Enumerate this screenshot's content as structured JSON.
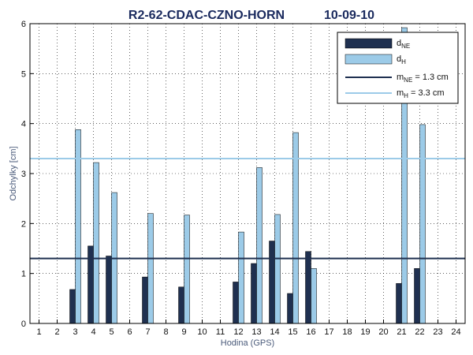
{
  "chart_data": {
    "type": "bar",
    "title": "R2-62-CDAC-CZNO-HORN",
    "date": "10-09-10",
    "x_label": "Hodina (GPS)",
    "y_label": "Odchylky [cm]",
    "x": [
      1,
      2,
      3,
      4,
      5,
      6,
      7,
      8,
      9,
      10,
      11,
      12,
      13,
      14,
      15,
      16,
      17,
      18,
      19,
      20,
      21,
      22,
      23,
      24
    ],
    "xlim": [
      0.5,
      24.5
    ],
    "xticks": [
      1,
      2,
      3,
      4,
      5,
      6,
      7,
      8,
      9,
      10,
      11,
      12,
      13,
      14,
      15,
      16,
      17,
      18,
      19,
      20,
      21,
      22,
      23,
      24
    ],
    "ylim": [
      0,
      6
    ],
    "yticks": [
      0,
      1,
      2,
      3,
      4,
      5,
      6
    ],
    "grid": true,
    "series": [
      {
        "name": "d",
        "sub": "NE",
        "color": "#1f3050",
        "values": [
          null,
          null,
          0.68,
          1.55,
          1.35,
          null,
          0.93,
          null,
          0.73,
          null,
          null,
          0.83,
          1.2,
          1.65,
          0.6,
          1.44,
          null,
          null,
          null,
          null,
          0.8,
          1.1,
          null,
          null
        ]
      },
      {
        "name": "d",
        "sub": "H",
        "color": "#9ccbe8",
        "values": [
          null,
          null,
          3.88,
          3.22,
          2.62,
          null,
          2.2,
          null,
          2.17,
          null,
          null,
          1.83,
          3.12,
          2.18,
          3.82,
          1.1,
          null,
          null,
          null,
          null,
          5.92,
          3.98,
          null,
          null
        ]
      }
    ],
    "reference_lines": [
      {
        "name": "m",
        "sub": "NE",
        "value": 1.3,
        "value_label": " = 1.3 cm",
        "color": "#1f3050"
      },
      {
        "name": "m",
        "sub": "H",
        "value": 3.3,
        "value_label": " = 3.3 cm",
        "color": "#9ccbe8"
      }
    ],
    "legend": "upper right"
  }
}
